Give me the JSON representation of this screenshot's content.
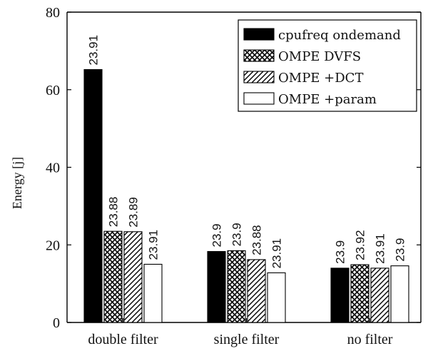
{
  "chart_data": {
    "type": "bar",
    "title": "",
    "xlabel": "",
    "ylabel": "Energy [j]",
    "ylim": [
      0,
      80
    ],
    "yticks": [
      0,
      20,
      40,
      60,
      80
    ],
    "grid": false,
    "legend_position": "top-right",
    "categories": [
      "double filter",
      "single filter",
      "no filter"
    ],
    "series": [
      {
        "name": "cpufreq ondemand",
        "pattern": "solid",
        "color": "#000000",
        "values": [
          65.2,
          18.3,
          14.0
        ],
        "labels": [
          "23.91",
          "23.9",
          "23.9"
        ]
      },
      {
        "name": "OMPE DVFS",
        "pattern": "crosshatch",
        "color": "#000000",
        "values": [
          23.5,
          18.5,
          14.9
        ],
        "labels": [
          "23.88",
          "23.9",
          "23.92"
        ]
      },
      {
        "name": "OMPE +DCT",
        "pattern": "diagonal",
        "color": "#000000",
        "values": [
          23.4,
          16.2,
          14.0
        ],
        "labels": [
          "23.89",
          "23.88",
          "23.91"
        ]
      },
      {
        "name": "OMPE +param",
        "pattern": "empty",
        "color": "#ffffff",
        "values": [
          15.0,
          12.8,
          14.6
        ],
        "labels": [
          "23.91",
          "23.91",
          "23.9"
        ]
      }
    ]
  }
}
